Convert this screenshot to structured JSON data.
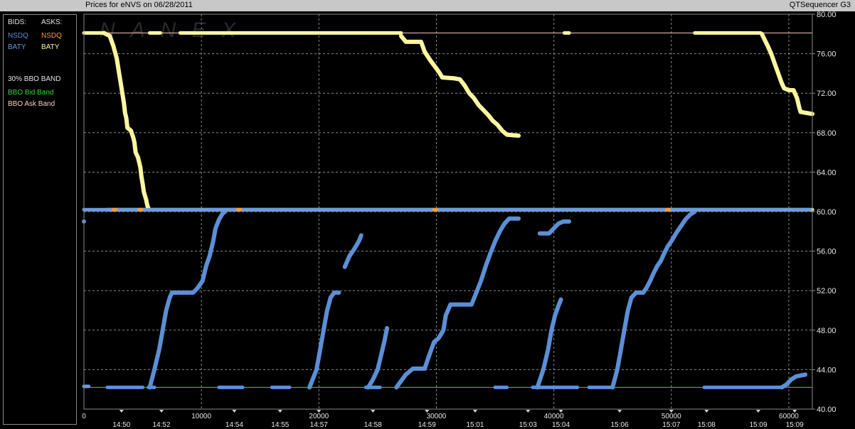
{
  "header": {
    "title_left": "Prices for  eNVS  on  06/28/2011",
    "title_right": "QTSequencer G3"
  },
  "legend": {
    "bids_header": "BIDS:",
    "asks_header": "ASKS:",
    "bid_nsdq": "NSDQ",
    "ask_nsdq": "NSDQ",
    "bid_baty": "BATY",
    "ask_baty": "BATY",
    "band_title": "30% BBO BAND",
    "bid_band": "BBO Bid Band",
    "ask_band": "BBO Ask Band"
  },
  "colors": {
    "nsdq_bid": "#5b8fd6",
    "nsdq_ask": "#ff9933",
    "baty_bid": "#6b9be0",
    "baty_ask": "#fff6a0",
    "bid_band": "#33dd33",
    "ask_band": "#ffc8c8",
    "grid": "#8a8a8a",
    "watermark": "#2a2a2a"
  },
  "watermark": "NANEX",
  "chart_data": {
    "type": "scatter",
    "title": "Prices for  eNVS  on  06/28/2011",
    "xlim": [
      0,
      62000
    ],
    "ylim": [
      40,
      80
    ],
    "y_ticks": [
      "40.00",
      "44.00",
      "48.00",
      "52.00",
      "56.00",
      "60.00",
      "64.00",
      "68.00",
      "72.00",
      "76.00",
      "80.00"
    ],
    "x_ticks": [
      "0",
      "10000",
      "20000",
      "30000",
      "40000",
      "50000",
      "60000"
    ],
    "x_tick_values": [
      0,
      10000,
      20000,
      30000,
      40000,
      50000,
      60000
    ],
    "time_labels": [
      {
        "x": 3200,
        "label": "14:50"
      },
      {
        "x": 6600,
        "label": "14:52"
      },
      {
        "x": 12800,
        "label": "14:54"
      },
      {
        "x": 16700,
        "label": "14:55"
      },
      {
        "x": 20000,
        "label": "14:57"
      },
      {
        "x": 24600,
        "label": "14:58"
      },
      {
        "x": 29200,
        "label": "14:59"
      },
      {
        "x": 33300,
        "label": "15:01"
      },
      {
        "x": 37800,
        "label": "15:03"
      },
      {
        "x": 40600,
        "label": "15:04"
      },
      {
        "x": 45600,
        "label": "15:06"
      },
      {
        "x": 50000,
        "label": "15:07"
      },
      {
        "x": 53000,
        "label": "15:08"
      },
      {
        "x": 57400,
        "label": "15:09"
      },
      {
        "x": 60500,
        "label": "15:09"
      }
    ],
    "bands": [
      {
        "name": "BBO Ask Band",
        "y": 78.1
      },
      {
        "name": "BBO Bid Band",
        "y": 42.2
      }
    ],
    "series": [
      {
        "name": "BATY",
        "side": "ask",
        "segments": [
          [
            [
              0,
              78.1
            ],
            [
              1600,
              78.1
            ]
          ],
          [
            [
              1700,
              78.1
            ],
            [
              2200,
              77.8
            ],
            [
              2500,
              76.8
            ],
            [
              2800,
              75.5
            ],
            [
              3000,
              74
            ],
            [
              3200,
              72.5
            ],
            [
              3400,
              71
            ],
            [
              3500,
              70
            ],
            [
              3600,
              69.5
            ],
            [
              3700,
              68.5
            ],
            [
              3900,
              68.3
            ],
            [
              4000,
              68.2
            ],
            [
              4200,
              67.5
            ],
            [
              4300,
              67
            ],
            [
              4400,
              66
            ],
            [
              4600,
              65.5
            ],
            [
              4800,
              64.5
            ],
            [
              4900,
              63.5
            ],
            [
              5000,
              62.8
            ],
            [
              5100,
              62
            ],
            [
              5300,
              61.2
            ],
            [
              5400,
              60.6
            ],
            [
              5500,
              60.3
            ]
          ],
          [
            [
              2000,
              60.2
            ],
            [
              62000,
              60.2
            ]
          ],
          [
            [
              5600,
              78.1
            ],
            [
              6500,
              78.1
            ]
          ],
          [
            [
              8200,
              78.1
            ],
            [
              27000,
              78.1
            ]
          ],
          [
            [
              27000,
              77.8
            ],
            [
              27400,
              77.2
            ],
            [
              28700,
              77.2
            ],
            [
              29000,
              76.2
            ],
            [
              29500,
              75.3
            ],
            [
              30000,
              74.5
            ],
            [
              30300,
              74
            ],
            [
              30500,
              73.6
            ],
            [
              31500,
              73.5
            ],
            [
              32000,
              73.4
            ],
            [
              32400,
              72.8
            ],
            [
              32800,
              72
            ],
            [
              33200,
              71.5
            ],
            [
              33600,
              70.8
            ],
            [
              34000,
              70.3
            ],
            [
              34400,
              69.8
            ],
            [
              34800,
              69.2
            ],
            [
              35200,
              68.8
            ],
            [
              35600,
              68.2
            ],
            [
              36000,
              67.8
            ],
            [
              37000,
              67.7
            ]
          ],
          [
            [
              40900,
              78.1
            ],
            [
              41300,
              78.1
            ]
          ],
          [
            [
              52000,
              78.1
            ],
            [
              57600,
              78.1
            ]
          ],
          [
            [
              57700,
              78
            ],
            [
              58200,
              76.8
            ],
            [
              58500,
              76
            ],
            [
              58800,
              75
            ],
            [
              59100,
              74
            ],
            [
              59400,
              73
            ],
            [
              59600,
              72.5
            ],
            [
              60000,
              72.3
            ],
            [
              60400,
              72.3
            ],
            [
              60700,
              71.5
            ],
            [
              60900,
              70.5
            ],
            [
              61000,
              70.1
            ],
            [
              62000,
              69.9
            ]
          ]
        ]
      },
      {
        "name": "NSDQ",
        "side": "bid",
        "segments": [
          [
            [
              2000,
              42.2
            ],
            [
              5000,
              42.2
            ]
          ],
          [
            [
              5500,
              42.2
            ],
            [
              6000,
              42.2
            ]
          ],
          [
            [
              5600,
              42.2
            ],
            [
              6000,
              44
            ],
            [
              6400,
              46
            ],
            [
              6700,
              48
            ],
            [
              7000,
              50
            ],
            [
              7300,
              51.3
            ],
            [
              7500,
              51.8
            ],
            [
              9300,
              51.8
            ],
            [
              9700,
              52.3
            ],
            [
              10100,
              53
            ],
            [
              10400,
              54.5
            ],
            [
              10700,
              55.5
            ],
            [
              11000,
              57
            ],
            [
              11200,
              58.3
            ],
            [
              11500,
              59.2
            ],
            [
              11800,
              59.8
            ],
            [
              12100,
              60.1
            ]
          ],
          [
            [
              11500,
              42.2
            ],
            [
              13500,
              42.2
            ]
          ],
          [
            [
              16000,
              42.2
            ],
            [
              17500,
              42.2
            ]
          ],
          [
            [
              19200,
              42.2
            ],
            [
              19800,
              44
            ],
            [
              20100,
              46
            ],
            [
              20400,
              48
            ],
            [
              20700,
              50
            ],
            [
              21000,
              51.3
            ],
            [
              21300,
              51.8
            ],
            [
              21700,
              51.8
            ]
          ],
          [
            [
              22200,
              54.4
            ],
            [
              22600,
              55.5
            ],
            [
              23000,
              56.2
            ],
            [
              23400,
              57
            ],
            [
              23600,
              57.6
            ]
          ],
          [
            [
              24000,
              42.2
            ],
            [
              25200,
              42.2
            ]
          ],
          [
            [
              24200,
              42.2
            ],
            [
              24600,
              43
            ],
            [
              25000,
              44
            ],
            [
              25300,
              45.5
            ],
            [
              25600,
              47
            ],
            [
              25800,
              48.2
            ]
          ],
          [
            [
              26600,
              42.2
            ],
            [
              27400,
              43.5
            ],
            [
              28000,
              44.1
            ],
            [
              29000,
              44.1
            ],
            [
              29400,
              45.5
            ],
            [
              29800,
              46.8
            ],
            [
              30200,
              47.2
            ],
            [
              30600,
              48
            ],
            [
              30800,
              49.5
            ],
            [
              31200,
              50.6
            ],
            [
              32000,
              50.6
            ],
            [
              33000,
              50.6
            ],
            [
              33400,
              51.8
            ],
            [
              33800,
              53
            ],
            [
              34200,
              54.5
            ],
            [
              34600,
              55.8
            ],
            [
              35000,
              57
            ],
            [
              35400,
              58
            ],
            [
              35800,
              58.8
            ],
            [
              36200,
              59.3
            ],
            [
              37000,
              59.3
            ]
          ],
          [
            [
              35000,
              42.2
            ],
            [
              36000,
              42.2
            ]
          ],
          [
            [
              38600,
              42.2
            ],
            [
              39100,
              44
            ],
            [
              39500,
              46
            ],
            [
              39800,
              48
            ],
            [
              40100,
              49.5
            ],
            [
              40400,
              50.5
            ],
            [
              40600,
              51.1
            ]
          ],
          [
            [
              38200,
              42.2
            ],
            [
              42000,
              42.2
            ]
          ],
          [
            [
              38800,
              57.8
            ],
            [
              39600,
              57.8
            ],
            [
              40000,
              58.3
            ],
            [
              40400,
              58.8
            ],
            [
              40800,
              59
            ],
            [
              41300,
              59
            ]
          ],
          [
            [
              43000,
              42.2
            ],
            [
              45000,
              42.2
            ]
          ],
          [
            [
              45000,
              42.2
            ],
            [
              45400,
              44
            ],
            [
              45700,
              46
            ],
            [
              46000,
              48
            ],
            [
              46300,
              50
            ],
            [
              46600,
              51.3
            ],
            [
              47000,
              51.8
            ],
            [
              47600,
              51.8
            ],
            [
              47900,
              52.3
            ],
            [
              48200,
              53
            ],
            [
              48500,
              53.8
            ],
            [
              48800,
              54.5
            ],
            [
              49100,
              55
            ],
            [
              49400,
              55.8
            ],
            [
              49700,
              56.5
            ],
            [
              50000,
              57
            ],
            [
              50400,
              57.8
            ],
            [
              50800,
              58.5
            ],
            [
              51200,
              59.2
            ],
            [
              51600,
              59.7
            ],
            [
              52000,
              60
            ]
          ],
          [
            [
              52800,
              42.2
            ],
            [
              59400,
              42.2
            ]
          ],
          [
            [
              59400,
              42.2
            ],
            [
              59800,
              42.5
            ],
            [
              60200,
              43
            ],
            [
              60600,
              43.3
            ],
            [
              61000,
              43.4
            ],
            [
              61400,
              43.5
            ]
          ],
          [
            [
              0,
              59
            ]
          ]
        ]
      },
      {
        "name": "BATY",
        "side": "bid",
        "segments": [
          [
            [
              0,
              60.2
            ],
            [
              61800,
              60.2
            ]
          ],
          [
            [
              0,
              42.3
            ],
            [
              400,
              42.3
            ]
          ]
        ]
      },
      {
        "name": "NSDQ",
        "side": "ask",
        "segments": [
          [
            [
              2500,
              60.2
            ],
            [
              2700,
              60.2
            ]
          ],
          [
            [
              4700,
              60.2
            ],
            [
              4900,
              60.2
            ]
          ],
          [
            [
              13100,
              60.2
            ],
            [
              13300,
              60.2
            ]
          ],
          [
            [
              29800,
              60.2
            ],
            [
              30000,
              60.2
            ]
          ],
          [
            [
              49600,
              60.2
            ],
            [
              49800,
              60.2
            ]
          ]
        ]
      }
    ]
  }
}
